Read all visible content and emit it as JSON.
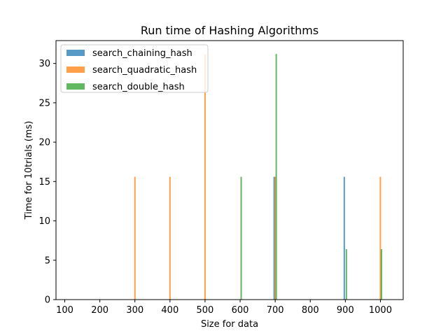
{
  "chart_data": {
    "type": "bar",
    "title": "Run time of Hashing Algorithms",
    "xlabel": "Size for data",
    "ylabel": "Time for 10trials (ms)",
    "xlim": [
      75,
      1065
    ],
    "ylim": [
      0,
      32.9
    ],
    "xticks": [
      100,
      200,
      300,
      400,
      500,
      600,
      700,
      800,
      900,
      1000
    ],
    "yticks": [
      0,
      5,
      10,
      15,
      20,
      25,
      30
    ],
    "legend_position": "top-left",
    "bar_width": 3,
    "series": [
      {
        "name": "search_chaining_hash",
        "color": "#1f77b4",
        "offset": -3,
        "x": [
          100,
          200,
          300,
          400,
          500,
          600,
          700,
          800,
          900,
          1000
        ],
        "values": [
          0,
          0,
          0,
          0,
          0,
          0,
          15.6,
          0,
          15.6,
          0
        ]
      },
      {
        "name": "search_quadratic_hash",
        "color": "#ff7f0e",
        "offset": 0,
        "x": [
          100,
          200,
          300,
          400,
          500,
          600,
          700,
          800,
          900,
          1000
        ],
        "values": [
          0,
          0,
          15.6,
          15.6,
          31.2,
          0,
          15.6,
          0,
          0,
          15.6
        ]
      },
      {
        "name": "search_double_hash",
        "color": "#2ca02c",
        "offset": 3,
        "x": [
          100,
          200,
          300,
          400,
          500,
          600,
          700,
          800,
          900,
          1000
        ],
        "values": [
          0,
          0,
          0,
          0,
          0,
          15.6,
          31.2,
          0,
          6.4,
          6.4
        ]
      }
    ]
  }
}
